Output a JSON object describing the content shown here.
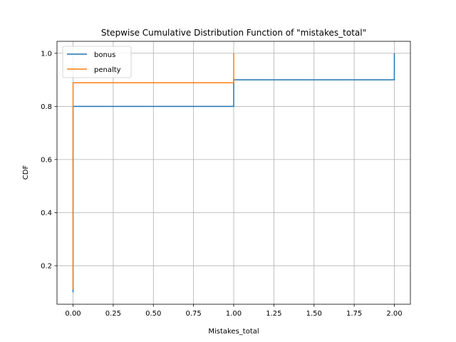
{
  "chart_data": {
    "type": "line",
    "drawstyle": "step",
    "title": "Stepwise Cumulative Distribution Function of \"mistakes_total\"",
    "xlabel": "Mistakes_total",
    "ylabel": "CDF",
    "xlim": [
      -0.1,
      2.1
    ],
    "ylim": [
      0.055,
      1.045
    ],
    "xticks": [
      0.0,
      0.25,
      0.5,
      0.75,
      1.0,
      1.25,
      1.5,
      1.75,
      2.0
    ],
    "xtick_labels": [
      "0.00",
      "0.25",
      "0.50",
      "0.75",
      "1.00",
      "1.25",
      "1.50",
      "1.75",
      "2.00"
    ],
    "yticks": [
      0.2,
      0.4,
      0.6,
      0.8,
      1.0
    ],
    "ytick_labels": [
      "0.2",
      "0.4",
      "0.6",
      "0.8",
      "1.0"
    ],
    "grid": true,
    "legend_position": "top-left",
    "series": [
      {
        "name": "bonus",
        "color": "#1f77b4",
        "x": [
          0.0,
          0.0,
          1.0,
          2.0
        ],
        "y": [
          0.1,
          0.8,
          0.9,
          1.0
        ]
      },
      {
        "name": "penalty",
        "color": "#ff7f0e",
        "x": [
          0.0,
          0.0,
          1.0
        ],
        "y": [
          0.111,
          0.889,
          1.0
        ]
      }
    ]
  }
}
